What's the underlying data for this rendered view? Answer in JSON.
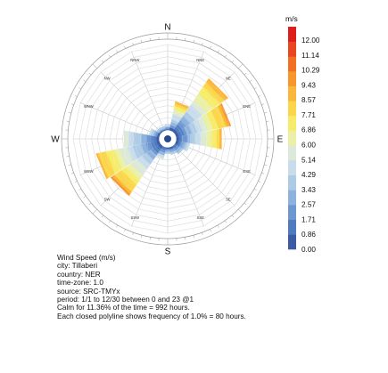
{
  "chart_data": {
    "type": "wind-rose",
    "directions": [
      "N",
      "NNE",
      "NE",
      "ENE",
      "E",
      "ESE",
      "SE",
      "SSE",
      "S",
      "SSW",
      "SW",
      "WSW",
      "W",
      "WNW",
      "NW",
      "NNW"
    ],
    "cardinal_labels": [
      "N",
      "E",
      "S",
      "W"
    ],
    "intercardinal_labels": [
      "NNE",
      "NE",
      "ENE",
      "ESE",
      "SE",
      "SSE",
      "SSW",
      "SW",
      "WSW",
      "WNW",
      "NW",
      "NNW"
    ],
    "ring_unit_percent": 1.0,
    "max_rings": 14,
    "frequency_percent": [
      0.7,
      4.5,
      10.2,
      8.8,
      7.2,
      2.0,
      1.3,
      0.9,
      0.7,
      1.8,
      9.5,
      10.2,
      5.5,
      1.4,
      0.5,
      0.4
    ],
    "peak_speed_ms": [
      4.0,
      7.7,
      8.2,
      8.4,
      7.6,
      4.0,
      3.4,
      3.0,
      3.0,
      4.5,
      8.4,
      8.0,
      5.0,
      4.0,
      3.0,
      3.0
    ],
    "colorbar": {
      "title": "m/s",
      "ticks": [
        "12.00",
        "11.14",
        "10.29",
        "9.43",
        "8.57",
        "7.71",
        "6.86",
        "6.00",
        "5.14",
        "4.29",
        "3.43",
        "2.57",
        "1.71",
        "0.86",
        "0.00"
      ],
      "min": 0.0,
      "max": 12.0,
      "colors": [
        "#3b5ba5",
        "#4f7bbf",
        "#6d97d1",
        "#8eb2de",
        "#aecbe6",
        "#c8dceb",
        "#dde9d8",
        "#eaf0a6",
        "#f7ec6a",
        "#fbd64a",
        "#fbb73b",
        "#f8962e",
        "#f26f24",
        "#e9461f",
        "#de1e1b"
      ]
    }
  },
  "info": {
    "lines": [
      "Wind Speed (m/s)",
      "city: Tillaberi",
      "country: NER",
      "time-zone: 1.0",
      "source: SRC-TMYx",
      "period: 1/1 to 12/30 between 0 and 23 @1",
      "Calm for 11.36% of the time = 992 hours.",
      "Each closed polyline shows frequency of 1.0% = 80 hours."
    ]
  }
}
